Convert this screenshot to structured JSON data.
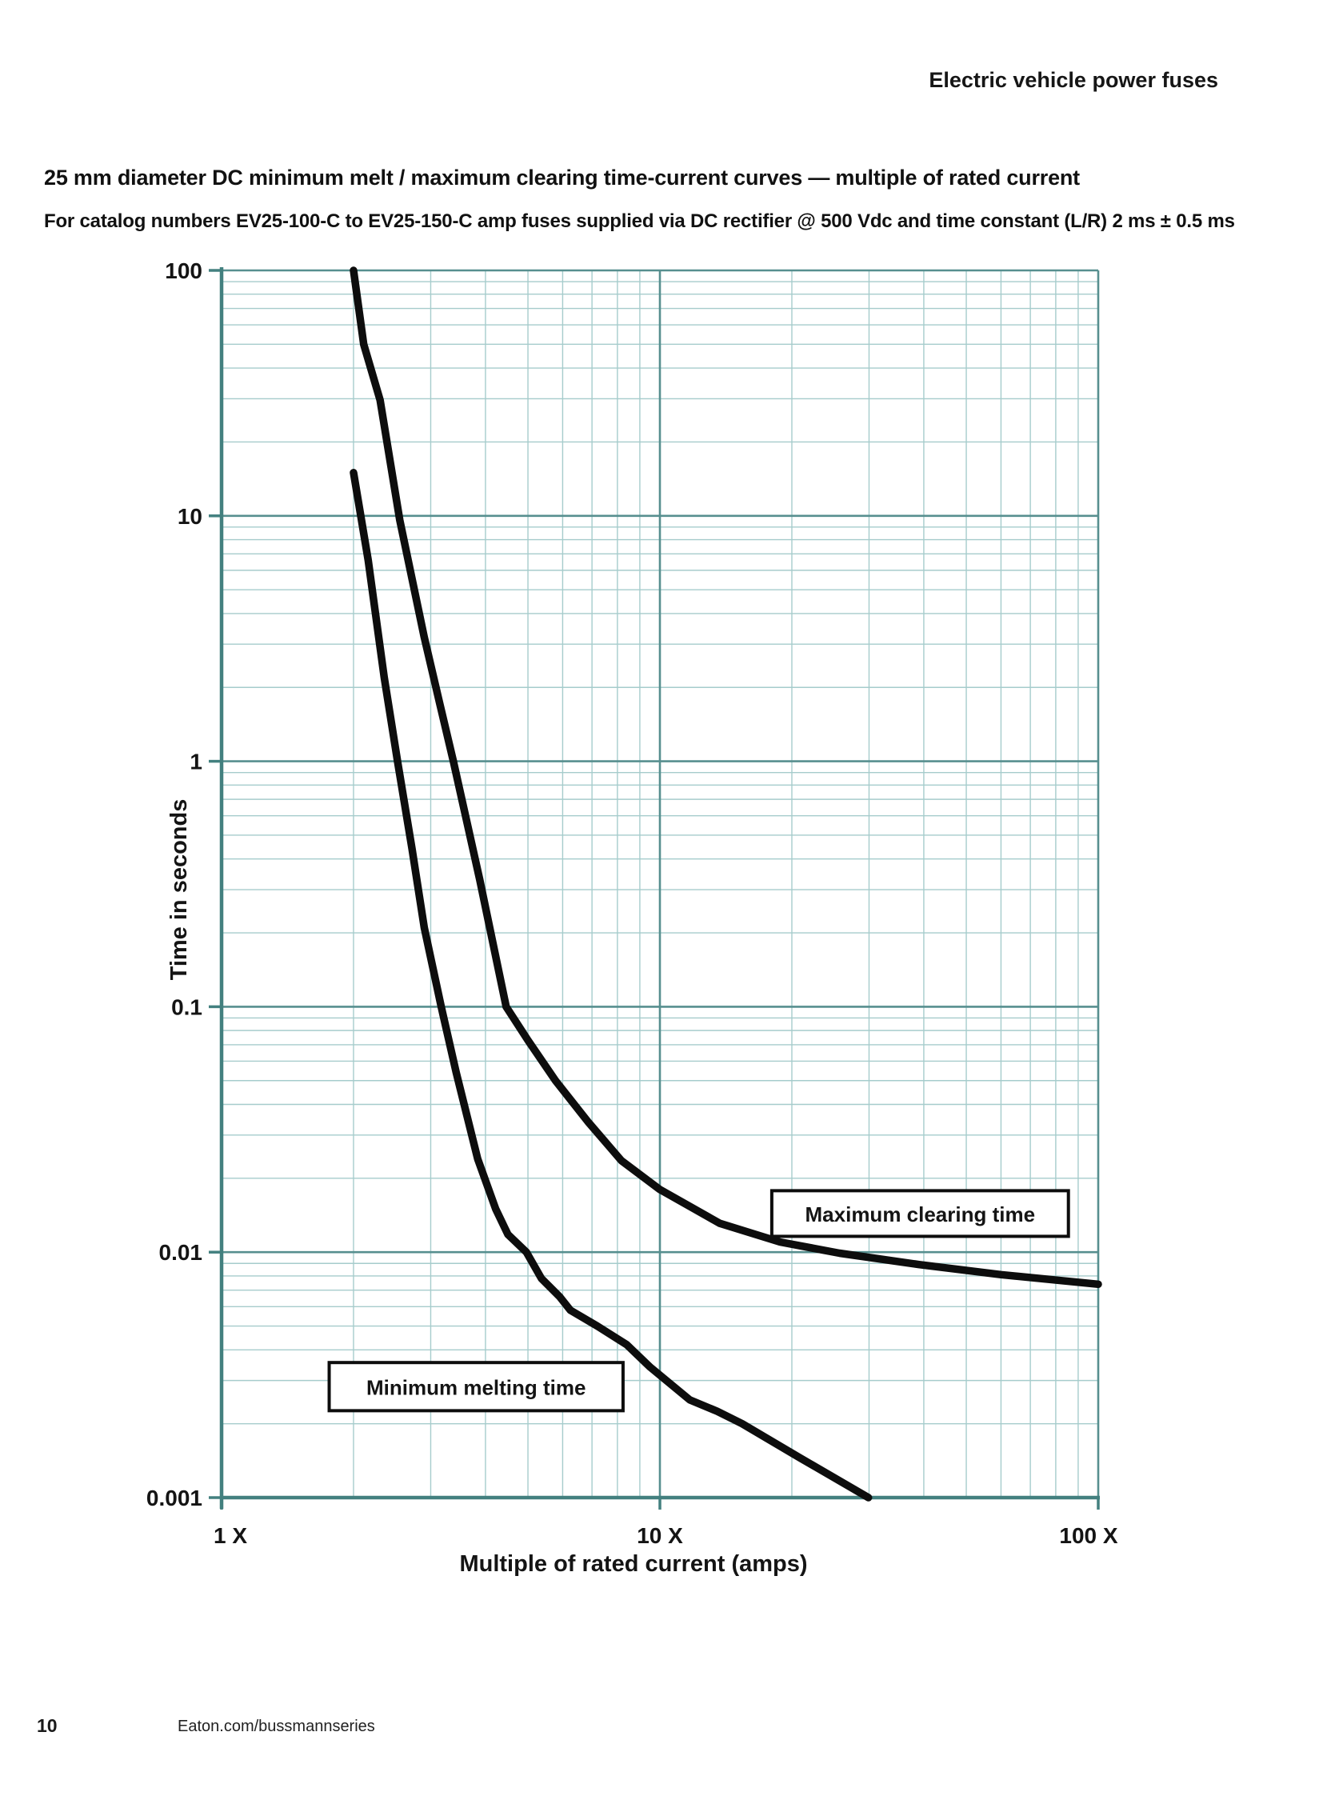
{
  "page": {
    "header": "Electric vehicle power fuses",
    "title": "25 mm diameter DC minimum melt / maximum clearing time-current curves — multiple of rated current",
    "subtitle": "For catalog numbers EV25-100-C to EV25-150-C amp fuses supplied via DC rectifier @ 500 Vdc and time constant (L/R) 2 ms ± 0.5 ms",
    "footer": {
      "page_number": "10",
      "site": "Eaton.com/bussmannseries"
    }
  },
  "chart_data": {
    "type": "line",
    "x_scale": "log",
    "y_scale": "log",
    "xlabel": "Multiple of rated current (amps)",
    "ylabel": "Time in seconds",
    "xlim": [
      1,
      100
    ],
    "ylim": [
      0.001,
      100
    ],
    "grid": {
      "on": true,
      "major_color": "#578f8f",
      "minor_color": "#a6cccc",
      "axis_color": "#43807f"
    },
    "curve_color": "#0d0d0d",
    "x_ticks": [
      {
        "label": "1 X",
        "value": 1
      },
      {
        "label": "10 X",
        "value": 10
      },
      {
        "label": "100 X",
        "value": 100
      }
    ],
    "y_ticks": [
      {
        "label": "100",
        "value": 100
      },
      {
        "label": "10",
        "value": 10
      },
      {
        "label": "1",
        "value": 1
      },
      {
        "label": "0.1",
        "value": 0.1
      },
      {
        "label": "0.01",
        "value": 0.01
      },
      {
        "label": "0.001",
        "value": 0.001
      }
    ],
    "series": [
      {
        "name": "Minimum melting time",
        "points": [
          [
            2.0,
            15
          ],
          [
            2.16,
            6.6
          ],
          [
            2.35,
            2.2
          ],
          [
            2.52,
            1.0
          ],
          [
            2.72,
            0.44
          ],
          [
            2.9,
            0.21
          ],
          [
            3.17,
            0.1
          ],
          [
            3.43,
            0.054
          ],
          [
            3.84,
            0.024
          ],
          [
            4.22,
            0.015
          ],
          [
            4.5,
            0.0118
          ],
          [
            4.96,
            0.01
          ],
          [
            5.37,
            0.0078
          ],
          [
            5.9,
            0.0066
          ],
          [
            6.25,
            0.0058
          ],
          [
            7.2,
            0.005
          ],
          [
            8.4,
            0.0042
          ],
          [
            9.5,
            0.0034
          ],
          [
            11.7,
            0.0025
          ],
          [
            13.5,
            0.00225
          ],
          [
            15.4,
            0.002
          ],
          [
            20.9,
            0.00145
          ],
          [
            29.9,
            0.001
          ]
        ]
      },
      {
        "name": "Maximum clearing time",
        "points": [
          [
            2.0,
            100
          ],
          [
            2.11,
            50
          ],
          [
            2.3,
            29.6
          ],
          [
            2.55,
            9.6
          ],
          [
            2.9,
            3.2
          ],
          [
            3.15,
            1.7
          ],
          [
            3.38,
            1.0
          ],
          [
            3.88,
            0.33
          ],
          [
            4.46,
            0.1
          ],
          [
            5.0,
            0.073
          ],
          [
            5.78,
            0.05
          ],
          [
            6.85,
            0.034
          ],
          [
            8.17,
            0.0236
          ],
          [
            10.0,
            0.018
          ],
          [
            13.7,
            0.0131
          ],
          [
            18.8,
            0.011
          ],
          [
            25.7,
            0.0099
          ],
          [
            39,
            0.0089
          ],
          [
            60,
            0.0081
          ],
          [
            100,
            0.0074
          ]
        ]
      }
    ],
    "annotations": [
      {
        "text": "Maximum clearing time",
        "x_range": [
          18.0,
          85.5
        ],
        "y_range": [
          0.0116,
          0.0178
        ]
      },
      {
        "text": "Minimum melting time",
        "x_range": [
          1.76,
          8.24
        ],
        "y_range": [
          0.00226,
          0.00355
        ]
      }
    ]
  }
}
